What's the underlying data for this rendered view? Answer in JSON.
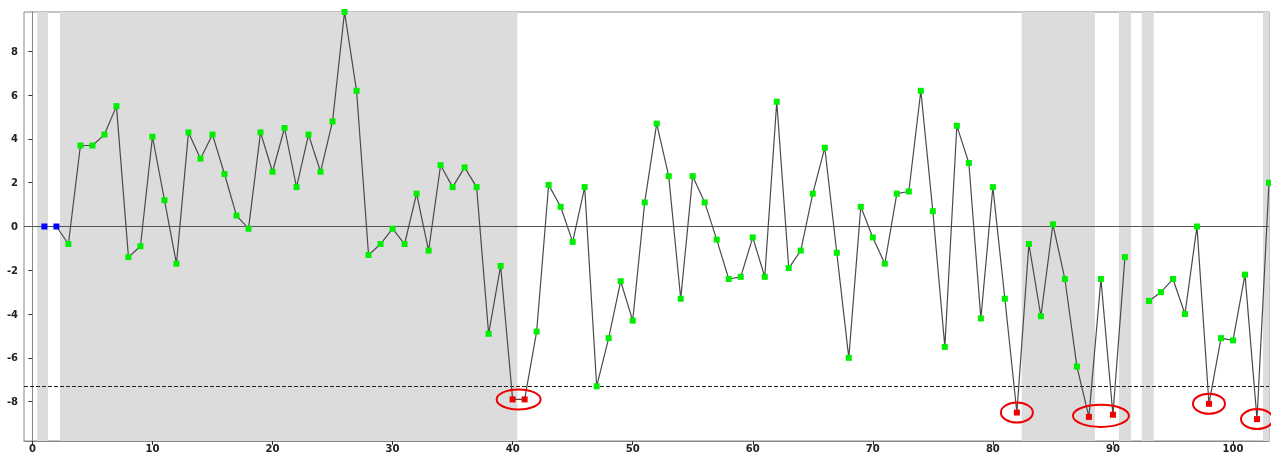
{
  "chart_data": {
    "type": "line",
    "x": [
      1,
      2,
      3,
      4,
      5,
      6,
      7,
      8,
      9,
      10,
      11,
      12,
      13,
      14,
      15,
      16,
      17,
      18,
      19,
      20,
      21,
      22,
      23,
      24,
      25,
      26,
      27,
      28,
      29,
      30,
      31,
      32,
      33,
      34,
      35,
      36,
      37,
      38,
      39,
      40,
      41,
      42,
      43,
      44,
      45,
      46,
      47,
      48,
      49,
      50,
      51,
      52,
      53,
      54,
      55,
      56,
      57,
      58,
      59,
      60,
      61,
      62,
      63,
      64,
      65,
      66,
      67,
      68,
      69,
      70,
      71,
      72,
      73,
      74,
      75,
      76,
      77,
      78,
      79,
      80,
      81,
      82,
      83,
      84,
      85,
      86,
      87,
      88,
      89,
      90,
      91,
      92,
      93,
      94,
      95,
      96,
      97,
      98,
      99,
      100,
      101,
      102,
      103
    ],
    "series": [
      {
        "color": "#4a4a4a",
        "values": [
          0,
          0,
          -0.8,
          3.7,
          3.7,
          4.2,
          5.5,
          -1.4,
          -0.9,
          4.1,
          1.2,
          -1.7,
          4.3,
          3.1,
          4.2,
          2.4,
          0.5,
          -0.1,
          4.3,
          2.5,
          4.5,
          1.8,
          4.2,
          2.5,
          4.8,
          9.8,
          6.2,
          -1.3,
          -0.8,
          -0.1,
          -0.8,
          1.5,
          -1.1,
          2.8,
          1.8,
          2.7,
          1.8,
          -4.9,
          -1.8,
          -7.9,
          -7.9,
          -4.8,
          1.9,
          0.9,
          -0.7,
          1.8,
          -7.3,
          -5.1,
          -2.5,
          -4.3,
          1.1,
          4.7,
          2.3,
          -3.3,
          2.3,
          1.1,
          -0.6,
          -2.4,
          -2.3,
          -0.5,
          -2.3,
          5.7,
          -1.9,
          -1.1,
          1.5,
          3.6,
          -1.2,
          -6.0,
          0.9,
          -0.5,
          -1.7,
          1.5,
          1.6,
          6.2,
          0.7,
          -5.5,
          4.6,
          2.9,
          -4.2,
          1.8,
          -3.3,
          -8.5,
          -0.8,
          -4.1,
          0.1,
          -2.4,
          -6.4,
          -8.7,
          -2.4,
          -8.6,
          -1.4,
          null,
          -3.4,
          -3.0,
          -2.4,
          -4.0,
          0.0,
          -8.1,
          -5.1,
          -5.2,
          -2.2,
          -8.8,
          2.0
        ],
        "colors": [
          "#0000ff",
          "#0000ff",
          "#00ee00",
          "#00ee00",
          "#00ee00",
          "#00ee00",
          "#00ee00",
          "#00ee00",
          "#00ee00",
          "#00ee00",
          "#00ee00",
          "#00ee00",
          "#00ee00",
          "#00ee00",
          "#00ee00",
          "#00ee00",
          "#00ee00",
          "#00ee00",
          "#00ee00",
          "#00ee00",
          "#00ee00",
          "#00ee00",
          "#00ee00",
          "#00ee00",
          "#00ee00",
          "#00ee00",
          "#00ee00",
          "#00ee00",
          "#00ee00",
          "#00ee00",
          "#00ee00",
          "#00ee00",
          "#00ee00",
          "#00ee00",
          "#00ee00",
          "#00ee00",
          "#00ee00",
          "#00ee00",
          "#00ee00",
          "#ee0000",
          "#ee0000",
          "#00ee00",
          "#00ee00",
          "#00ee00",
          "#00ee00",
          "#00ee00",
          "#00ee00",
          "#00ee00",
          "#00ee00",
          "#00ee00",
          "#00ee00",
          "#00ee00",
          "#00ee00",
          "#00ee00",
          "#00ee00",
          "#00ee00",
          "#00ee00",
          "#00ee00",
          "#00ee00",
          "#00ee00",
          "#00ee00",
          "#00ee00",
          "#00ee00",
          "#00ee00",
          "#00ee00",
          "#00ee00",
          "#00ee00",
          "#00ee00",
          "#00ee00",
          "#00ee00",
          "#00ee00",
          "#00ee00",
          "#00ee00",
          "#00ee00",
          "#00ee00",
          "#00ee00",
          "#00ee00",
          "#00ee00",
          "#00ee00",
          "#00ee00",
          "#00ee00",
          "#ee0000",
          "#00ee00",
          "#00ee00",
          "#00ee00",
          "#00ee00",
          "#00ee00",
          "#ee0000",
          "#00ee00",
          "#ee0000",
          "#00ee00",
          "#00ee00",
          "#00ee00",
          "#00ee00",
          "#00ee00",
          "#00ee00",
          "#00ee00",
          "#ee0000",
          "#00ee00",
          "#00ee00",
          "#00ee00",
          "#ee0000",
          "#00ee00"
        ]
      }
    ],
    "xlim": [
      -0.7,
      103
    ],
    "xticks": [
      0,
      10,
      20,
      30,
      40,
      50,
      60,
      70,
      80,
      90,
      100
    ],
    "ylim": [
      -9.8,
      9.8
    ],
    "yticks": [
      -8,
      -6,
      -4,
      -2,
      0,
      2,
      4,
      6,
      8
    ],
    "bands": [
      {
        "axis": "x",
        "from": 0.4,
        "to": 1.3,
        "color": "#dcdcdc"
      },
      {
        "axis": "x",
        "from": 2.3,
        "to": 40.4,
        "color": "#dcdcdc"
      },
      {
        "axis": "x",
        "from": 82.4,
        "to": 88.5,
        "color": "#dcdcdc"
      },
      {
        "axis": "x",
        "from": 90.5,
        "to": 91.5,
        "color": "#dcdcdc"
      },
      {
        "axis": "x",
        "from": 92.4,
        "to": 93.4,
        "color": "#dcdcdc"
      },
      {
        "axis": "x",
        "from": 102.5,
        "to": 103,
        "color": "#dcdcdc"
      }
    ],
    "ref_lines": [
      {
        "axis": "y",
        "value": 0,
        "color": "#555555",
        "line_style": "solid"
      },
      {
        "axis": "y",
        "value": -7.3,
        "color": "#222222",
        "line_style": "dashed"
      }
    ],
    "marker": "square",
    "line_style": "solid",
    "grid": false
  }
}
